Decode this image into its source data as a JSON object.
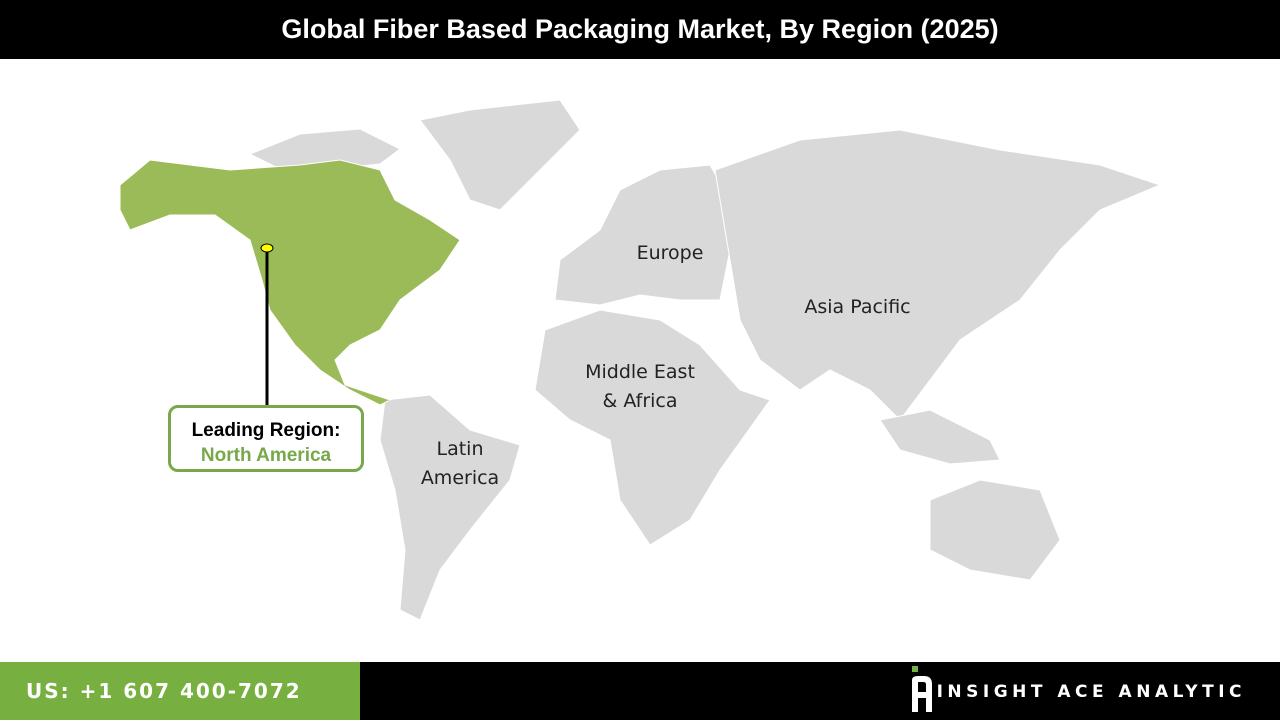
{
  "title": "Global Fiber Based Packaging Market, By Region (2025)",
  "regions": {
    "north_america": "North America",
    "europe": "Europe",
    "asia_pacific": "Asia Pacific",
    "mea_line1": "Middle East",
    "mea_line2": "& Africa",
    "latam_line1": "Latin",
    "latam_line2": "America"
  },
  "callout": {
    "label": "Leading Region:",
    "value": "North America"
  },
  "footer": {
    "phone": "US: +1 607 400-7072",
    "brand": "INSIGHT ACE ANALYTIC"
  },
  "colors": {
    "leading": "#9bbb59",
    "other": "#d9d9d9",
    "accent": "#77b041",
    "marker": "#ffff00"
  }
}
